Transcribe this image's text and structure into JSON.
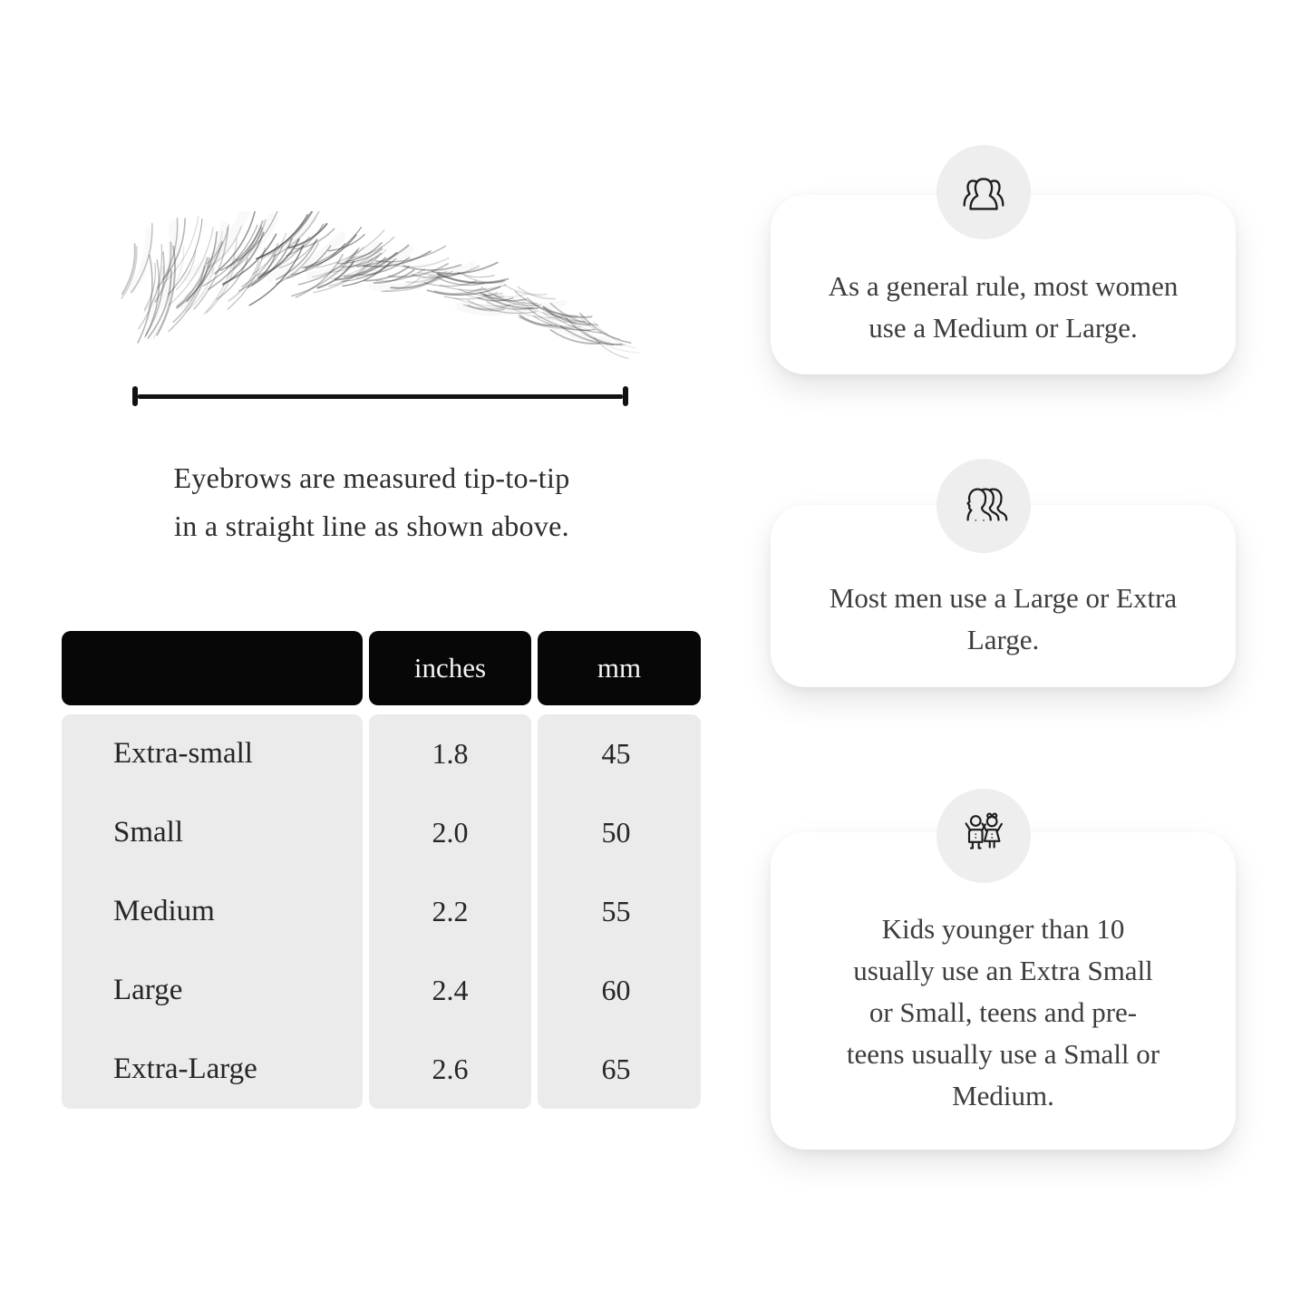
{
  "caption": {
    "line1": "Eyebrows are measured tip-to-tip",
    "line2": "in a straight line as shown above."
  },
  "table": {
    "headers": [
      "",
      "inches",
      "mm"
    ],
    "rows": [
      {
        "label": "Extra-small",
        "inches": "1.8",
        "mm": "45"
      },
      {
        "label": "Small",
        "inches": "2.0",
        "mm": "50"
      },
      {
        "label": "Medium",
        "inches": "2.2",
        "mm": "55"
      },
      {
        "label": "Large",
        "inches": "2.4",
        "mm": "60"
      },
      {
        "label": "Extra-Large",
        "inches": "2.6",
        "mm": "65"
      }
    ]
  },
  "cards": [
    {
      "icon": "women-group-icon",
      "text": "As a general rule, most women use a Medium or Large."
    },
    {
      "icon": "men-group-icon",
      "text": "Most men use a Large or Extra Large."
    },
    {
      "icon": "kids-icon",
      "text": "Kids younger than 10 usually use an Extra Small or Small, teens and pre-teens usually use a Small or Medium."
    }
  ],
  "colors": {
    "table_header_bg": "#070707",
    "table_header_text": "#f5f5f5",
    "table_body_bg": "#ebebeb",
    "icon_circle_bg": "#efeeee",
    "card_bg": "#ffffff",
    "text": "#2f2f2f"
  }
}
